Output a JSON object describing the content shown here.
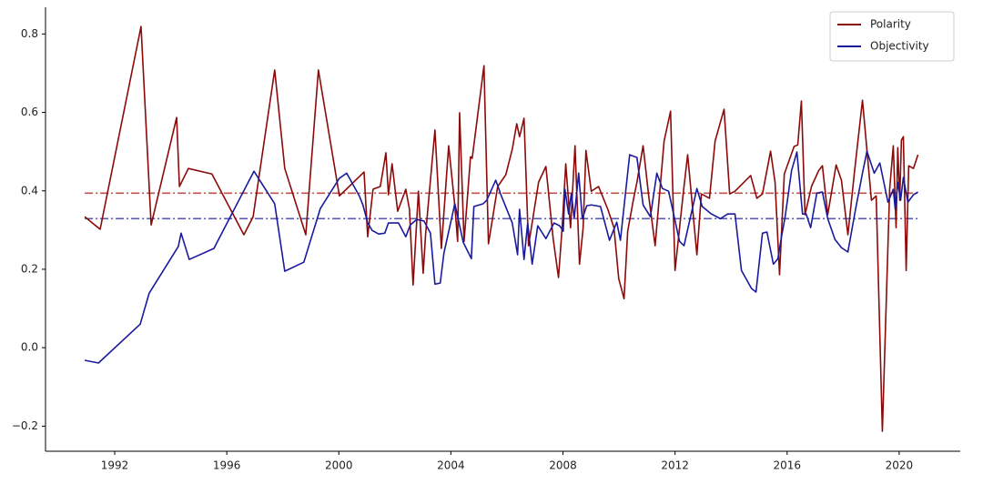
{
  "chart_data": {
    "type": "line",
    "xlim": [
      1989.53,
      2022.18
    ],
    "ylim": [
      -0.264,
      0.868
    ],
    "xticks": [
      1992,
      1996,
      2000,
      2004,
      2008,
      2012,
      2016,
      2020
    ],
    "yticks": [
      {
        "value": -0.2,
        "label": "−0.2"
      },
      {
        "value": 0,
        "label": "0.0"
      },
      0.2,
      0.4,
      0.6,
      0.8
    ],
    "legend": "upper right",
    "hlines": [
      {
        "value": 0.394,
        "color": "#c0504d"
      },
      {
        "value": 0.329,
        "color": "#5a5ab4"
      }
    ],
    "series": [
      {
        "name": "Polarity",
        "color": "#8b0a0a",
        "x": [
          1990.93,
          1991.48,
          1992.94,
          1993.3,
          1994.21,
          1994.31,
          1994.63,
          1995.47,
          1996.61,
          1996.94,
          1997.71,
          1998.07,
          1998.82,
          1999.27,
          2000.02,
          2000.9,
          2001.03,
          2001.22,
          2001.48,
          2001.68,
          2001.77,
          2001.9,
          2002.1,
          2002.39,
          2002.52,
          2002.65,
          2002.84,
          2003.01,
          2003.1,
          2003.43,
          2003.66,
          2003.92,
          2004.14,
          2004.24,
          2004.31,
          2004.47,
          2004.7,
          2004.76,
          2005.18,
          2005.34,
          2005.67,
          2005.96,
          2006.19,
          2006.35,
          2006.45,
          2006.61,
          2006.77,
          2007.13,
          2007.39,
          2007.65,
          2007.84,
          2007.97,
          2008.1,
          2008.27,
          2008.43,
          2008.59,
          2008.72,
          2008.82,
          2009.01,
          2009.27,
          2009.6,
          2009.82,
          2009.99,
          2010.18,
          2010.31,
          2010.51,
          2010.64,
          2010.86,
          2011.06,
          2011.29,
          2011.61,
          2011.84,
          2012.0,
          2012.29,
          2012.45,
          2012.78,
          2012.94,
          2013.23,
          2013.43,
          2013.75,
          2013.95,
          2014.14,
          2014.7,
          2014.92,
          2015.12,
          2015.41,
          2015.57,
          2015.73,
          2015.9,
          2016.25,
          2016.38,
          2016.51,
          2016.64,
          2016.87,
          2017.13,
          2017.26,
          2017.45,
          2017.75,
          2017.94,
          2018.17,
          2018.4,
          2018.69,
          2019.01,
          2019.18,
          2019.4,
          2019.66,
          2019.79,
          2019.89,
          2019.95,
          2020.02,
          2020.08,
          2020.15,
          2020.25,
          2020.34,
          2020.51,
          2020.67
        ],
        "values": [
          0.334,
          0.302,
          0.819,
          0.313,
          0.587,
          0.411,
          0.457,
          0.443,
          0.288,
          0.334,
          0.708,
          0.457,
          0.288,
          0.708,
          0.387,
          0.448,
          0.283,
          0.404,
          0.411,
          0.497,
          0.39,
          0.469,
          0.348,
          0.404,
          0.353,
          0.16,
          0.399,
          0.19,
          0.292,
          0.555,
          0.253,
          0.515,
          0.362,
          0.271,
          0.599,
          0.271,
          0.487,
          0.483,
          0.719,
          0.265,
          0.411,
          0.441,
          0.506,
          0.571,
          0.538,
          0.585,
          0.26,
          0.422,
          0.462,
          0.278,
          0.179,
          0.306,
          0.469,
          0.306,
          0.515,
          0.213,
          0.306,
          0.503,
          0.399,
          0.411,
          0.353,
          0.306,
          0.176,
          0.125,
          0.297,
          0.376,
          0.422,
          0.515,
          0.387,
          0.26,
          0.527,
          0.603,
          0.197,
          0.392,
          0.492,
          0.237,
          0.392,
          0.381,
          0.527,
          0.608,
          0.392,
          0.399,
          0.439,
          0.381,
          0.392,
          0.501,
          0.422,
          0.186,
          0.443,
          0.513,
          0.517,
          0.629,
          0.339,
          0.411,
          0.452,
          0.464,
          0.339,
          0.466,
          0.427,
          0.288,
          0.445,
          0.631,
          0.376,
          0.387,
          -0.213,
          0.404,
          0.515,
          0.306,
          0.51,
          0.376,
          0.529,
          0.538,
          0.197,
          0.464,
          0.457,
          0.492
        ]
      },
      {
        "name": "Objectivity",
        "color": "#1a1a9c",
        "x": [
          1990.93,
          1991.42,
          1992.91,
          1993.23,
          1994.27,
          1994.37,
          1994.66,
          1995.54,
          1996.97,
          1997.71,
          1998.07,
          1998.75,
          1999.34,
          2000.02,
          2000.28,
          2000.73,
          2000.86,
          2001.03,
          2001.19,
          2001.42,
          2001.64,
          2001.77,
          2002.13,
          2002.39,
          2002.55,
          2002.78,
          2003.04,
          2003.27,
          2003.43,
          2003.62,
          2003.75,
          2004.14,
          2004.44,
          2004.73,
          2004.82,
          2005.15,
          2005.28,
          2005.6,
          2005.8,
          2006.19,
          2006.38,
          2006.45,
          2006.61,
          2006.74,
          2006.9,
          2007.1,
          2007.39,
          2007.68,
          2007.88,
          2008.01,
          2008.07,
          2008.2,
          2008.3,
          2008.4,
          2008.56,
          2008.69,
          2008.85,
          2009.01,
          2009.34,
          2009.66,
          2009.92,
          2010.05,
          2010.38,
          2010.64,
          2010.86,
          2011.12,
          2011.35,
          2011.55,
          2011.77,
          2011.97,
          2012.16,
          2012.32,
          2012.78,
          2012.97,
          2013.3,
          2013.62,
          2013.88,
          2014.14,
          2014.37,
          2014.73,
          2014.89,
          2015.12,
          2015.28,
          2015.51,
          2015.67,
          2015.8,
          2015.93,
          2016.16,
          2016.35,
          2016.55,
          2016.68,
          2016.84,
          2017.06,
          2017.26,
          2017.45,
          2017.71,
          2017.94,
          2018.17,
          2018.43,
          2018.69,
          2018.85,
          2019.11,
          2019.31,
          2019.6,
          2019.79,
          2019.86,
          2019.95,
          2020.05,
          2020.15,
          2020.31,
          2020.51,
          2020.67
        ],
        "values": [
          -0.032,
          -0.039,
          0.06,
          0.139,
          0.258,
          0.292,
          0.225,
          0.253,
          0.45,
          0.367,
          0.195,
          0.218,
          0.355,
          0.432,
          0.445,
          0.387,
          0.364,
          0.318,
          0.299,
          0.29,
          0.292,
          0.318,
          0.318,
          0.283,
          0.313,
          0.327,
          0.323,
          0.292,
          0.162,
          0.165,
          0.241,
          0.367,
          0.269,
          0.227,
          0.36,
          0.367,
          0.376,
          0.427,
          0.387,
          0.318,
          0.237,
          0.353,
          0.225,
          0.318,
          0.213,
          0.311,
          0.278,
          0.318,
          0.311,
          0.297,
          0.404,
          0.341,
          0.394,
          0.329,
          0.445,
          0.329,
          0.362,
          0.364,
          0.36,
          0.274,
          0.32,
          0.274,
          0.492,
          0.485,
          0.364,
          0.334,
          0.445,
          0.406,
          0.399,
          0.334,
          0.271,
          0.26,
          0.406,
          0.36,
          0.341,
          0.329,
          0.341,
          0.341,
          0.197,
          0.151,
          0.142,
          0.292,
          0.295,
          0.213,
          0.227,
          0.283,
          0.334,
          0.452,
          0.499,
          0.341,
          0.341,
          0.306,
          0.394,
          0.397,
          0.329,
          0.276,
          0.255,
          0.244,
          0.348,
          0.445,
          0.501,
          0.445,
          0.471,
          0.371,
          0.404,
          0.353,
          0.422,
          0.376,
          0.434,
          0.371,
          0.39,
          0.397
        ]
      }
    ]
  }
}
